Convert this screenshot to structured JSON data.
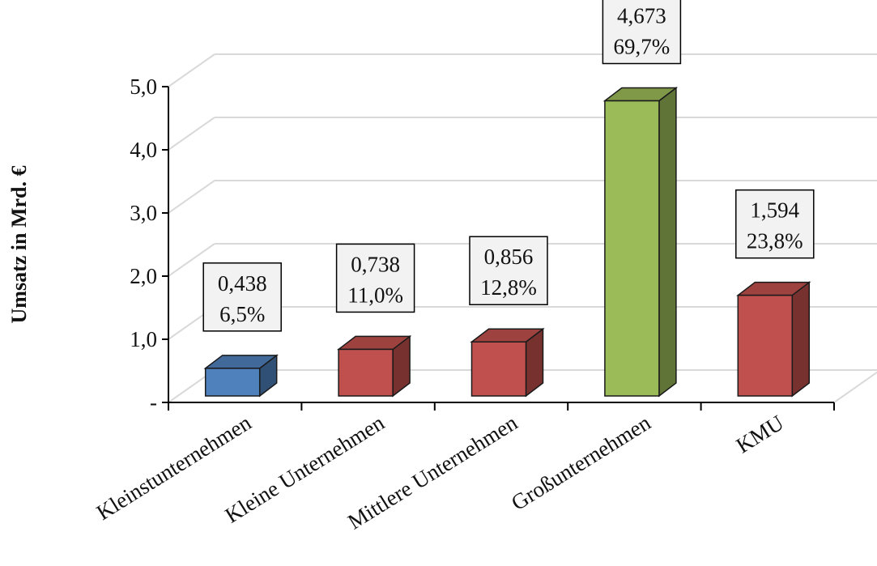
{
  "chart_data": {
    "type": "bar",
    "title": "",
    "xlabel": "",
    "ylabel": "Umsatz in Mrd. €",
    "ylim": [
      0,
      5
    ],
    "y_ticks": [
      {
        "value": 0,
        "label": "-"
      },
      {
        "value": 1,
        "label": "1,0"
      },
      {
        "value": 2,
        "label": "2,0"
      },
      {
        "value": 3,
        "label": "3,0"
      },
      {
        "value": 4,
        "label": "4,0"
      },
      {
        "value": 5,
        "label": "5,0"
      }
    ],
    "categories": [
      "Kleinstunternehmen",
      "Kleine Unternehmen",
      "Mittlere Unternehmen",
      "Großunternehmen",
      "KMU"
    ],
    "values": [
      0.438,
      0.738,
      0.856,
      4.673,
      1.594
    ],
    "value_labels": [
      "0,438",
      "0,738",
      "0,856",
      "4,673",
      "1,594"
    ],
    "percent_labels": [
      "6,5%",
      "11,0%",
      "12,8%",
      "69,7%",
      "23,8%"
    ],
    "bar_colors": [
      "#4f81bd",
      "#c0504d",
      "#c0504d",
      "#9bbb59",
      "#c0504d"
    ],
    "grid": true,
    "style": "3d-columns",
    "legend": "none"
  }
}
